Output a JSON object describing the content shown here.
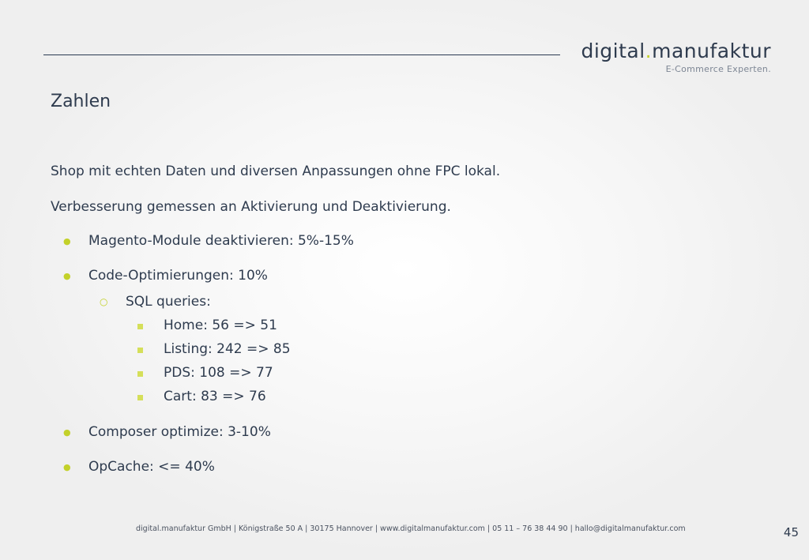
{
  "brand": {
    "name_part1": "digital",
    "name_dot": ".",
    "name_part2": "manufaktur",
    "tagline": "E-Commerce Experten."
  },
  "colors": {
    "accent": "#c3d12a",
    "text": "#2e3b4e",
    "rule": "#2b3a52"
  },
  "slide": {
    "title": "Zahlen",
    "paragraphs": [
      "Shop mit echten Daten und diversen Anpassungen ohne FPC lokal.",
      "Verbesserung gemessen an Aktivierung und Deaktivierung."
    ],
    "bullets": [
      "Magento-Module deaktivieren: 5%-15%",
      "Code-Optimierungen: 10%",
      "Composer optimize: 3-10%",
      "OpCache: <= 40%"
    ],
    "sub_bullet": "SQL queries:",
    "sub_sub_bullets": [
      "Home: 56 => 51",
      "Listing:  242 => 85",
      "PDS: 108 => 77",
      "Cart: 83 => 76"
    ]
  },
  "footer": {
    "text": "digital.manufaktur GmbH  |  Königstraße 50 A  |  30175 Hannover  | www.digitalmanufaktur.com |  05 11  –  76 38 44 90  | hallo@digitalmanufaktur.com",
    "page_number": "45"
  }
}
